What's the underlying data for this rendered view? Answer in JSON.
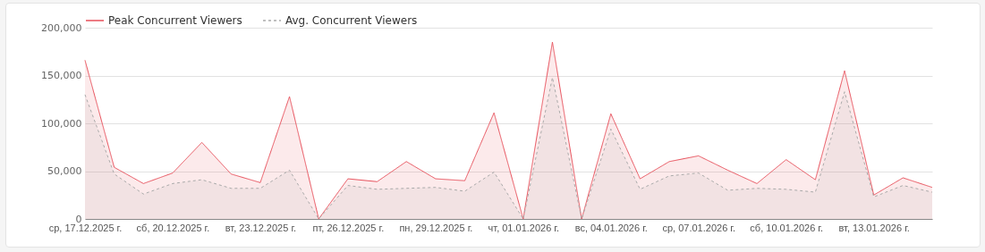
{
  "chart_data": {
    "type": "area",
    "x": [
      "2025-12-17",
      "2025-12-18",
      "2025-12-19",
      "2025-12-20",
      "2025-12-21",
      "2025-12-22",
      "2025-12-23",
      "2025-12-24",
      "2025-12-25",
      "2025-12-26",
      "2025-12-27",
      "2025-12-28",
      "2025-12-29",
      "2025-12-30",
      "2025-12-31",
      "2026-01-01",
      "2026-01-02",
      "2026-01-03",
      "2026-01-04",
      "2026-01-05",
      "2026-01-06",
      "2026-01-07",
      "2026-01-08",
      "2026-01-09",
      "2026-01-10",
      "2026-01-11",
      "2026-01-12",
      "2026-01-13",
      "2026-01-14",
      "2026-01-15"
    ],
    "series": [
      {
        "name": "Peak Concurrent Viewers",
        "color": "#e8505b",
        "line_style": "solid",
        "values": [
          166000,
          54000,
          37000,
          48000,
          80000,
          47000,
          38000,
          128000,
          0,
          42000,
          39000,
          60000,
          42000,
          40000,
          111000,
          0,
          185000,
          0,
          110000,
          42000,
          60000,
          66000,
          51000,
          37000,
          62000,
          41000,
          155000,
          25000,
          43000,
          33000
        ]
      },
      {
        "name": "Avg. Concurrent Viewers",
        "color": "#aaaaaa",
        "line_style": "dashed",
        "values": [
          130000,
          47000,
          26000,
          37000,
          41000,
          32000,
          32000,
          51000,
          0,
          35000,
          31000,
          32000,
          33000,
          29000,
          49000,
          0,
          148000,
          0,
          94000,
          31000,
          45000,
          48000,
          30000,
          32000,
          31000,
          28000,
          133000,
          23000,
          35000,
          28000
        ]
      }
    ],
    "xlim": [
      "2025-12-17",
      "2026-01-15"
    ],
    "xticks": [
      {
        "value": "2025-12-17",
        "label": "ср, 17.12.2025 г."
      },
      {
        "value": "2025-12-20",
        "label": "сб, 20.12.2025 г."
      },
      {
        "value": "2025-12-23",
        "label": "вт, 23.12.2025 г."
      },
      {
        "value": "2025-12-26",
        "label": "пт, 26.12.2025 г."
      },
      {
        "value": "2025-12-29",
        "label": "пн, 29.12.2025 г."
      },
      {
        "value": "2026-01-01",
        "label": "чт, 01.01.2026 г."
      },
      {
        "value": "2026-01-04",
        "label": "вс, 04.01.2026 г."
      },
      {
        "value": "2026-01-07",
        "label": "ср, 07.01.2026 г."
      },
      {
        "value": "2026-01-10",
        "label": "сб, 10.01.2026 г."
      },
      {
        "value": "2026-01-13",
        "label": "вт, 13.01.2026 г."
      }
    ],
    "ylim": [
      0,
      200000
    ],
    "yticks": [
      0,
      {
        "value": 50000,
        "label": "50,000"
      },
      {
        "value": 100000,
        "label": "100,000"
      },
      {
        "value": 150000,
        "label": "150,000"
      },
      {
        "value": 200000,
        "label": "200,000"
      }
    ],
    "grid": "y",
    "legend": "top left"
  }
}
